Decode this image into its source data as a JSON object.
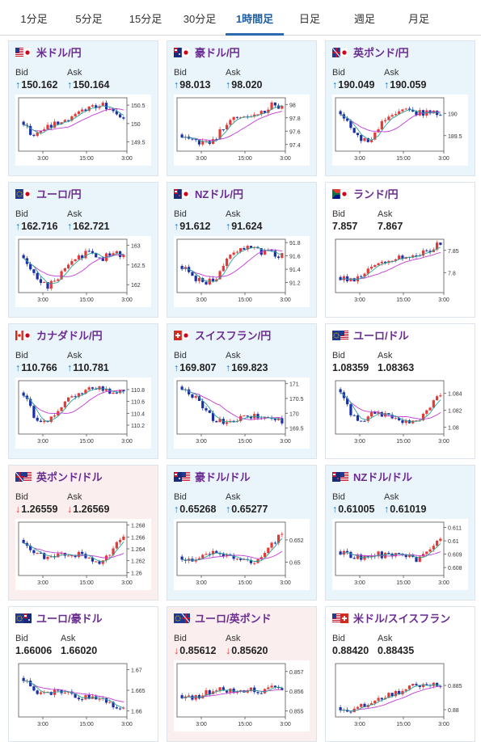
{
  "tabs": [
    {
      "label": "1分足",
      "active": false
    },
    {
      "label": "5分足",
      "active": false
    },
    {
      "label": "15分足",
      "active": false
    },
    {
      "label": "30分足",
      "active": false
    },
    {
      "label": "1時間足",
      "active": true
    },
    {
      "label": "日足",
      "active": false
    },
    {
      "label": "週足",
      "active": false
    },
    {
      "label": "月足",
      "active": false
    }
  ],
  "labels": {
    "bid": "Bid",
    "ask": "Ask"
  },
  "colors": {
    "up_bg": "#eaf4fb",
    "down_bg": "#fbeeee",
    "up_arrow": "#1a73c8",
    "down_arrow": "#d33",
    "candle_up": "#e53935",
    "candle_down": "#1a2fa8",
    "ma_short": "#2aa198",
    "ma_long": "#c23ad6"
  },
  "pairs": [
    {
      "name": "米ドル/円",
      "flag": "us-jp-flag-icon",
      "bid": "150.162",
      "ask": "150.164",
      "dir": "up",
      "chart_data": {
        "type": "candlestick",
        "x_ticks": [
          "3:00",
          "15:00",
          "3:00"
        ],
        "y_ticks": [
          "149.5",
          "150",
          "150.5"
        ],
        "ylim": [
          149.25,
          150.7
        ],
        "trend": [
          150.05,
          149.6,
          149.9,
          150.0,
          150.1,
          150.3,
          150.45,
          150.55,
          150.35,
          150.15
        ]
      }
    },
    {
      "name": "豪ドル/円",
      "flag": "au-jp-flag-icon",
      "bid": "98.013",
      "ask": "98.020",
      "dir": "up",
      "chart_data": {
        "type": "candlestick",
        "x_ticks": [
          "3:00",
          "15:00",
          "3:00"
        ],
        "y_ticks": [
          "97.4",
          "97.6",
          "97.8",
          "98"
        ],
        "ylim": [
          97.3,
          98.1
        ],
        "trend": [
          97.55,
          97.45,
          97.4,
          97.5,
          97.7,
          97.85,
          97.8,
          97.85,
          98.0,
          97.95
        ]
      }
    },
    {
      "name": "英ポンド/円",
      "flag": "gb-jp-flag-icon",
      "bid": "190.049",
      "ask": "190.059",
      "dir": "up",
      "chart_data": {
        "type": "candlestick",
        "x_ticks": [
          "3:00",
          "15:00",
          "3:00"
        ],
        "y_ticks": [
          "189.5",
          "190"
        ],
        "ylim": [
          189.15,
          190.35
        ],
        "trend": [
          190.05,
          189.6,
          189.35,
          189.5,
          189.85,
          190.0,
          190.1,
          190.0,
          190.05,
          190.0
        ]
      }
    },
    {
      "name": "ユーロ/円",
      "flag": "eu-jp-flag-icon",
      "bid": "162.716",
      "ask": "162.721",
      "dir": "up",
      "chart_data": {
        "type": "candlestick",
        "x_ticks": [
          "3:00",
          "15:00",
          "3:00"
        ],
        "y_ticks": [
          "162",
          "162.5",
          "163"
        ],
        "ylim": [
          161.8,
          163.15
        ],
        "trend": [
          162.75,
          162.2,
          161.95,
          162.1,
          162.5,
          162.7,
          162.85,
          162.65,
          162.8,
          162.75
        ]
      }
    },
    {
      "name": "NZドル/円",
      "flag": "nz-jp-flag-icon",
      "bid": "91.612",
      "ask": "91.624",
      "dir": "up",
      "chart_data": {
        "type": "candlestick",
        "x_ticks": [
          "3:00",
          "15:00",
          "3:00"
        ],
        "y_ticks": [
          "91.2",
          "91.4",
          "91.6",
          "91.8"
        ],
        "ylim": [
          91.05,
          91.85
        ],
        "trend": [
          91.45,
          91.25,
          91.2,
          91.25,
          91.55,
          91.7,
          91.75,
          91.65,
          91.65,
          91.6
        ]
      }
    },
    {
      "name": "ランド/円",
      "flag": "za-jp-flag-icon",
      "bid": "7.857",
      "ask": "7.867",
      "dir": "plain",
      "chart_data": {
        "type": "candlestick",
        "x_ticks": [
          "3:00",
          "15:00",
          "3:00"
        ],
        "y_ticks": [
          "7.8",
          "7.85"
        ],
        "ylim": [
          7.755,
          7.875
        ],
        "trend": [
          7.79,
          7.78,
          7.8,
          7.81,
          7.82,
          7.83,
          7.835,
          7.84,
          7.85,
          7.865
        ]
      }
    },
    {
      "name": "カナダドル/円",
      "flag": "ca-jp-flag-icon",
      "bid": "110.766",
      "ask": "110.781",
      "dir": "up",
      "chart_data": {
        "type": "candlestick",
        "x_ticks": [
          "3:00",
          "15:00",
          "3:00"
        ],
        "y_ticks": [
          "110.2",
          "110.4",
          "110.6",
          "110.8"
        ],
        "ylim": [
          110.05,
          110.95
        ],
        "trend": [
          110.75,
          110.35,
          110.25,
          110.4,
          110.65,
          110.7,
          110.85,
          110.8,
          110.75,
          110.75
        ]
      }
    },
    {
      "name": "スイスフラン/円",
      "flag": "ch-jp-flag-icon",
      "bid": "169.807",
      "ask": "169.823",
      "dir": "up",
      "chart_data": {
        "type": "candlestick",
        "x_ticks": [
          "3:00",
          "15:00",
          "3:00"
        ],
        "y_ticks": [
          "169.5",
          "170",
          "170.5",
          "171"
        ],
        "ylim": [
          169.3,
          171.1
        ],
        "trend": [
          170.9,
          170.6,
          170.2,
          169.75,
          169.65,
          169.8,
          169.9,
          169.85,
          169.75,
          169.75
        ]
      }
    },
    {
      "name": "ユーロ/ドル",
      "flag": "eu-us-flag-icon",
      "bid": "1.08359",
      "ask": "1.08363",
      "dir": "plain",
      "chart_data": {
        "type": "candlestick",
        "x_ticks": [
          "3:00",
          "15:00",
          "3:00"
        ],
        "y_ticks": [
          "1.08",
          "1.082",
          "1.084"
        ],
        "ylim": [
          1.0792,
          1.0855
        ],
        "trend": [
          1.0845,
          1.0815,
          1.0805,
          1.082,
          1.0815,
          1.081,
          1.0808,
          1.0805,
          1.0825,
          1.0838
        ]
      }
    },
    {
      "name": "英ポンド/ドル",
      "flag": "gb-us-flag-icon",
      "bid": "1.26559",
      "ask": "1.26569",
      "dir": "down",
      "chart_data": {
        "type": "candlestick",
        "x_ticks": [
          "3:00",
          "15:00",
          "3:00"
        ],
        "y_ticks": [
          "1.26",
          "1.262",
          "1.264",
          "1.266",
          "1.268"
        ],
        "ylim": [
          1.2595,
          1.2685
        ],
        "trend": [
          1.2655,
          1.2635,
          1.2625,
          1.263,
          1.2625,
          1.263,
          1.2625,
          1.2615,
          1.264,
          1.2657
        ]
      }
    },
    {
      "name": "豪ドル/ドル",
      "flag": "au-us-flag-icon",
      "bid": "0.65268",
      "ask": "0.65277",
      "dir": "up",
      "chart_data": {
        "type": "candlestick",
        "x_ticks": [
          "3:00",
          "15:00",
          "3:00"
        ],
        "y_ticks": [
          "0.65",
          "0.652"
        ],
        "ylim": [
          0.6488,
          0.6536
        ],
        "trend": [
          0.6505,
          0.6502,
          0.6506,
          0.6509,
          0.6505,
          0.6504,
          0.6502,
          0.6501,
          0.6515,
          0.6527
        ]
      }
    },
    {
      "name": "NZドル/ドル",
      "flag": "nz-us-flag-icon",
      "bid": "0.61005",
      "ask": "0.61019",
      "dir": "up",
      "chart_data": {
        "type": "candlestick",
        "x_ticks": [
          "3:00",
          "15:00",
          "3:00"
        ],
        "y_ticks": [
          "0.608",
          "0.609",
          "0.61",
          "0.611"
        ],
        "ylim": [
          0.6074,
          0.6114
        ],
        "trend": [
          0.6092,
          0.6088,
          0.6087,
          0.609,
          0.6089,
          0.609,
          0.6088,
          0.6085,
          0.6095,
          0.6101
        ]
      }
    },
    {
      "name": "ユーロ/豪ドル",
      "flag": "eu-au-flag-icon",
      "bid": "1.66006",
      "ask": "1.66020",
      "dir": "plain",
      "chart_data": {
        "type": "candlestick",
        "x_ticks": [
          "3:00",
          "15:00",
          "3:00"
        ],
        "y_ticks": [
          "1.66",
          "1.665",
          "1.67"
        ],
        "ylim": [
          1.6585,
          1.6715
        ],
        "trend": [
          1.668,
          1.665,
          1.664,
          1.6645,
          1.664,
          1.6635,
          1.663,
          1.6625,
          1.661,
          1.66
        ]
      }
    },
    {
      "name": "ユーロ/英ポンド",
      "flag": "eu-gb-flag-icon",
      "bid": "0.85612",
      "ask": "0.85620",
      "dir": "down",
      "chart_data": {
        "type": "candlestick",
        "x_ticks": [
          "3:00",
          "15:00",
          "3:00"
        ],
        "y_ticks": [
          "0.855",
          "0.856",
          "0.857"
        ],
        "ylim": [
          0.8547,
          0.8574
        ],
        "trend": [
          0.8558,
          0.8556,
          0.8559,
          0.856,
          0.8561,
          0.856,
          0.8561,
          0.856,
          0.8562,
          0.8561
        ]
      }
    },
    {
      "name": "米ドル/スイスフラン",
      "flag": "us-ch-flag-icon",
      "bid": "0.88420",
      "ask": "0.88435",
      "dir": "plain",
      "chart_data": {
        "type": "candlestick",
        "x_ticks": [
          "3:00",
          "15:00",
          "3:00"
        ],
        "y_ticks": [
          "0.88",
          "0.885"
        ],
        "ylim": [
          0.8785,
          0.8895
        ],
        "trend": [
          0.8805,
          0.8795,
          0.881,
          0.882,
          0.883,
          0.8835,
          0.8845,
          0.885,
          0.8855,
          0.8845
        ]
      }
    }
  ]
}
